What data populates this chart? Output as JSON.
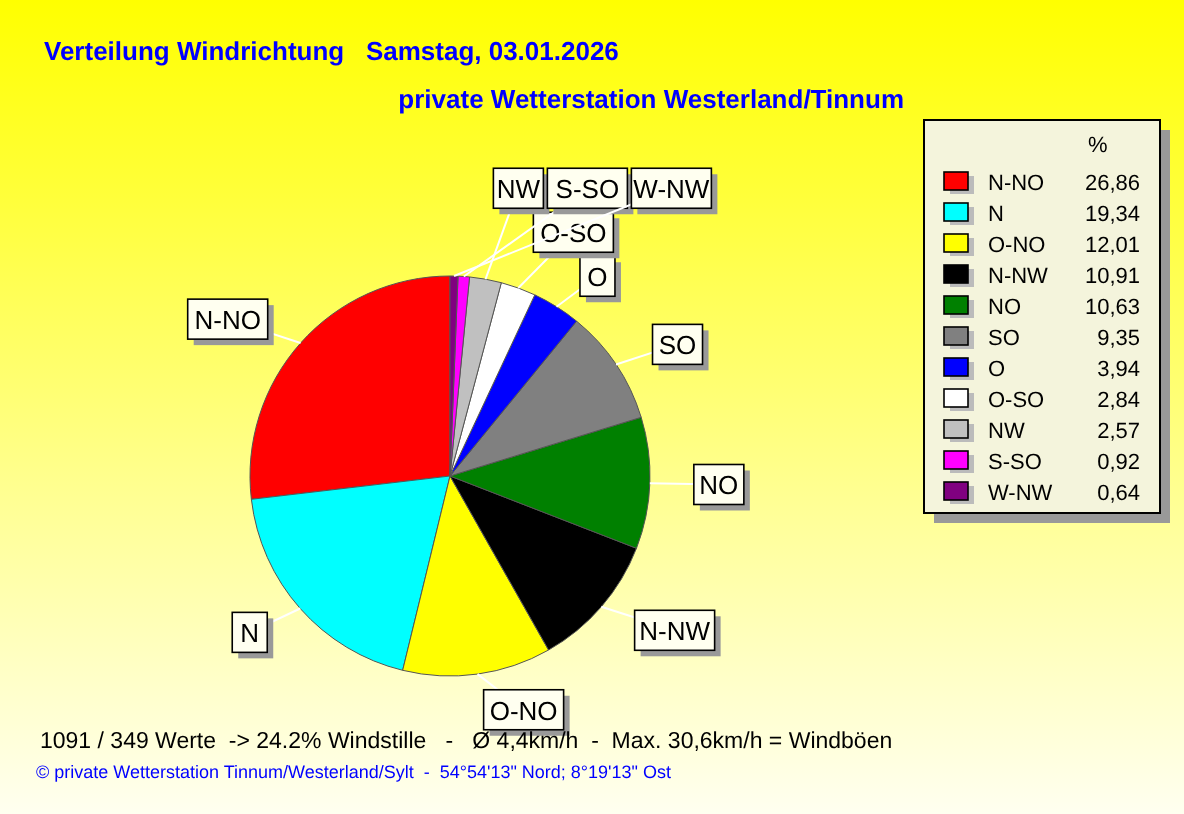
{
  "chart_data": {
    "type": "pie",
    "title": "Verteilung Windrichtung   Samstag, 03.01.2026",
    "subtitle": "private Wetterstation Westerland/Tinnum",
    "categories": [
      "N-NO",
      "N",
      "O-NO",
      "N-NW",
      "NO",
      "SO",
      "O",
      "O-SO",
      "NW",
      "S-SO",
      "W-NW"
    ],
    "values": [
      26.86,
      19.34,
      12.01,
      10.91,
      10.63,
      9.35,
      3.94,
      2.84,
      2.57,
      0.92,
      0.64
    ],
    "colors": [
      "#ff0000",
      "#00ffff",
      "#ffff00",
      "#000000",
      "#008000",
      "#808080",
      "#0000ff",
      "#ffffff",
      "#c0c0c0",
      "#ff00ff",
      "#800080"
    ],
    "value_labels": [
      "26,86",
      "19,34",
      "12,01",
      "10,91",
      "10,63",
      "9,35",
      "3,94",
      "2,84",
      "2,57",
      "0,92",
      "0,64"
    ],
    "legend": "right",
    "legend_title": "%",
    "annotations": [
      "1091 / 349 Werte  -> 24.2% Windstille   -   Ø 4,4km/h  -  Max. 30,6km/h = Windböen",
      "© private Wetterstation Tinnum/Westerland/Sylt  -  54°54'13\" Nord; 8°19'13\" Ost"
    ]
  }
}
